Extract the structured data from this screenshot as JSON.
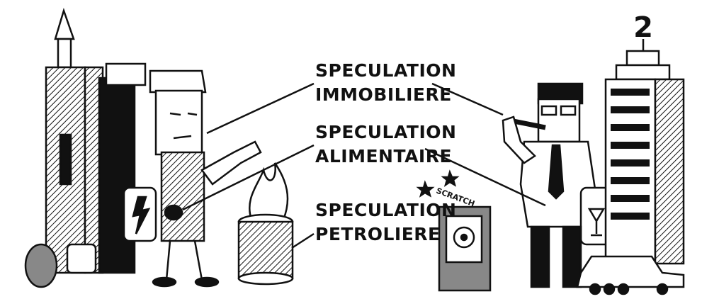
{
  "labels": [
    {
      "line1": "SPECULATION",
      "line2": "IMMOBILIERE"
    },
    {
      "line1": "SPECULATION",
      "line2": "ALIMENTAIRE"
    },
    {
      "line1": "SPECULATION",
      "line2": "PETROLIERE"
    }
  ],
  "scratch": "SCRATCH",
  "sign": "2"
}
